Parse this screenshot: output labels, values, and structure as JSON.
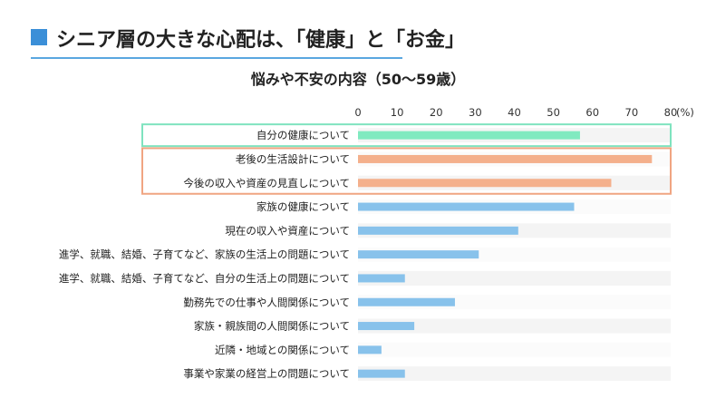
{
  "header": {
    "title": "シニア層の大きな心配は、「健康」と「お金」",
    "accent_color": "#3b8fd8"
  },
  "chart_data": {
    "type": "bar",
    "orientation": "horizontal",
    "title": "悩みや不安の内容（50〜59歳）",
    "unit_label": "(%)",
    "xlim": [
      0,
      80
    ],
    "ticks": [
      0,
      10,
      20,
      30,
      40,
      50,
      60,
      70,
      80
    ],
    "categories": [
      "自分の健康について",
      "老後の生活設計について",
      "今後の収入や資産の見直しについて",
      "家族の健康について",
      "現在の収入や資産について",
      "進学、就職、結婚、子育てなど、家族の生活上の問題について",
      "進学、就職、結婚、子育てなど、自分の生活上の問題について",
      "勤務先での仕事や人間関係について",
      "家族・親族間の人間関係について",
      "近隣・地域との関係について",
      "事業や家業の経営上の問題について"
    ],
    "values": [
      56.8,
      75.2,
      64.8,
      55.3,
      41.0,
      30.9,
      12.0,
      24.8,
      14.4,
      6.0,
      12.0
    ],
    "bar_colors": [
      "#80eac0",
      "#f4b08c",
      "#f4b08c",
      "#88c2eb",
      "#88c2eb",
      "#88c2eb",
      "#88c2eb",
      "#88c2eb",
      "#88c2eb",
      "#88c2eb",
      "#88c2eb"
    ],
    "highlight_colors": {
      "health": "#7fe3bf",
      "money": "#f0a582"
    }
  }
}
